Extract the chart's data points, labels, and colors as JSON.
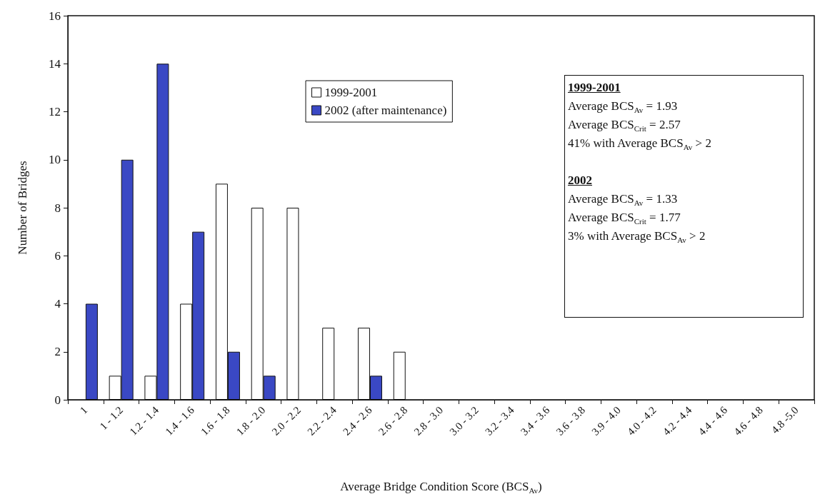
{
  "chart_data": {
    "type": "bar",
    "categories": [
      "1",
      "1 - 1.2",
      "1.2 - 1.4",
      "1.4 - 1.6",
      "1.6 - 1.8",
      "1.8 - 2.0",
      "2.0 - 2.2",
      "2.2 - 2.4",
      "2.4 - 2.6",
      "2.6 - 2.8",
      "2.8 - 3.0",
      "3.0 - 3.2",
      "3.2 - 3.4",
      "3.4 - 3.6",
      "3.6 - 3.8",
      "3.9 - 4.0",
      "4.0 - 4.2",
      "4.2 - 4.4",
      "4.4 - 4.6",
      "4.6 - 4.8",
      "4.8 -5.0"
    ],
    "series": [
      {
        "name": "1999-2001",
        "color": "#ffffff",
        "values": [
          0,
          1,
          1,
          4,
          9,
          8,
          8,
          3,
          3,
          2,
          0,
          0,
          0,
          0,
          0,
          0,
          0,
          0,
          0,
          0,
          0
        ]
      },
      {
        "name": "2002 (after maintenance)",
        "color": "#3a48c4",
        "values": [
          4,
          10,
          14,
          7,
          2,
          1,
          0,
          0,
          1,
          0,
          0,
          0,
          0,
          0,
          0,
          0,
          0,
          0,
          0,
          0,
          0
        ]
      }
    ],
    "xlabel": "Average Bridge Condition Score (BCS$_{Av}$)",
    "ylabel": "Number of Bridges",
    "ylim": [
      0,
      16
    ],
    "yticks": [
      0,
      2,
      4,
      6,
      8,
      10,
      12,
      14,
      16
    ],
    "grid": false,
    "legend": "top",
    "annotations": [
      "1999-2001",
      "Average BCS$_{Av}$ = 1.93",
      "Average BCS$_{Crit}$ = 2.57",
      "41% with Average BCS$_{Av}$ > 2",
      "2002",
      "Average BCS$_{Av}$ = 1.33",
      "Average BCS$_{Crit}$ = 1.77",
      "3% with Average BCS$_{Av}$ > 2"
    ]
  }
}
